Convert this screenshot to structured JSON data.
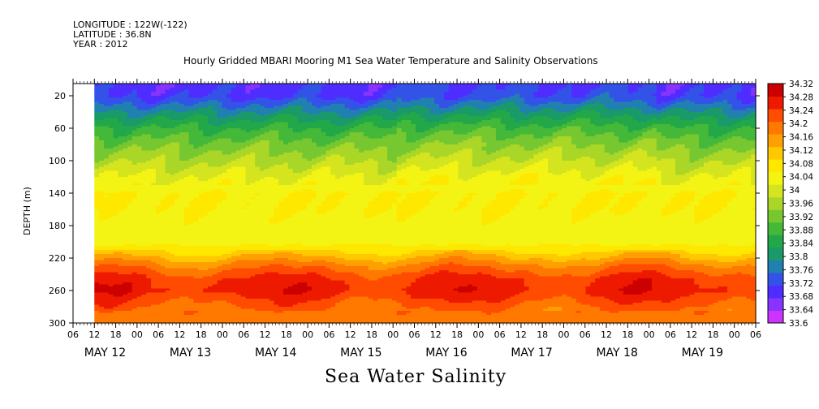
{
  "header": {
    "longitude": "LONGITUDE : 122W(-122)",
    "latitude": "LATITUDE : 36.8N",
    "year": "YEAR : 2012"
  },
  "chart_data": {
    "type": "heatmap",
    "title": "Hourly Gridded MBARI Mooring M1 Sea Water Temperature and Salinity Observations",
    "variable_label": "Sea Water Salinity",
    "ylabel": "DEPTH (m)",
    "xlabel": "",
    "x_start_hour": 6,
    "x_hour_ticks": [
      "06",
      "12",
      "18",
      "00",
      "06",
      "12",
      "18",
      "00",
      "06",
      "12",
      "18",
      "00",
      "06",
      "12",
      "18",
      "00",
      "06",
      "12",
      "18",
      "00",
      "06",
      "12",
      "18",
      "00",
      "06",
      "12",
      "18",
      "00",
      "06",
      "12",
      "18",
      "00",
      "06"
    ],
    "x_date_labels": [
      {
        "label": "MAY 12",
        "hour_index": 0
      },
      {
        "label": "MAY 13",
        "hour_index": 4
      },
      {
        "label": "MAY 14",
        "hour_index": 8
      },
      {
        "label": "MAY 15",
        "hour_index": 12
      },
      {
        "label": "MAY 16",
        "hour_index": 16
      },
      {
        "label": "MAY 17",
        "hour_index": 20
      },
      {
        "label": "MAY 18",
        "hour_index": 24
      },
      {
        "label": "MAY 19",
        "hour_index": 28
      }
    ],
    "data_start_hour_index": 1,
    "ylim": [
      300,
      5
    ],
    "y_ticks": [
      20,
      60,
      100,
      140,
      180,
      220,
      260,
      300
    ],
    "colorbar": {
      "min": 33.6,
      "max": 34.32,
      "step": 0.04,
      "tick_labels": [
        "34.32",
        "34.28",
        "34.24",
        "34.2",
        "34.16",
        "34.12",
        "34.08",
        "34.04",
        "34",
        "33.96",
        "33.92",
        "33.88",
        "33.84",
        "33.8",
        "33.76",
        "33.72",
        "33.68",
        "33.64",
        "33.6"
      ],
      "colors": [
        "#cc33ff",
        "#8833ff",
        "#4f2cff",
        "#3353e8",
        "#2080b0",
        "#1a9a68",
        "#22a848",
        "#44b838",
        "#77c830",
        "#aad628",
        "#d4e41e",
        "#f4f414",
        "#ffe800",
        "#ffc800",
        "#ffa000",
        "#ff7800",
        "#ff4c00",
        "#ee1a00",
        "#cc0000"
      ]
    },
    "depth_profile": [
      {
        "depth": 5,
        "salinity": 33.7
      },
      {
        "depth": 20,
        "salinity": 33.71
      },
      {
        "depth": 40,
        "salinity": 33.8
      },
      {
        "depth": 60,
        "salinity": 33.88
      },
      {
        "depth": 80,
        "salinity": 33.94
      },
      {
        "depth": 100,
        "salinity": 33.99
      },
      {
        "depth": 120,
        "salinity": 34.04
      },
      {
        "depth": 140,
        "salinity": 34.08
      },
      {
        "depth": 160,
        "salinity": 34.08
      },
      {
        "depth": 180,
        "salinity": 34.07
      },
      {
        "depth": 200,
        "salinity": 34.06
      },
      {
        "depth": 215,
        "salinity": 34.14
      },
      {
        "depth": 230,
        "salinity": 34.22
      },
      {
        "depth": 245,
        "salinity": 34.28
      },
      {
        "depth": 260,
        "salinity": 34.3
      },
      {
        "depth": 280,
        "salinity": 34.24
      },
      {
        "depth": 300,
        "salinity": 34.22
      }
    ]
  }
}
